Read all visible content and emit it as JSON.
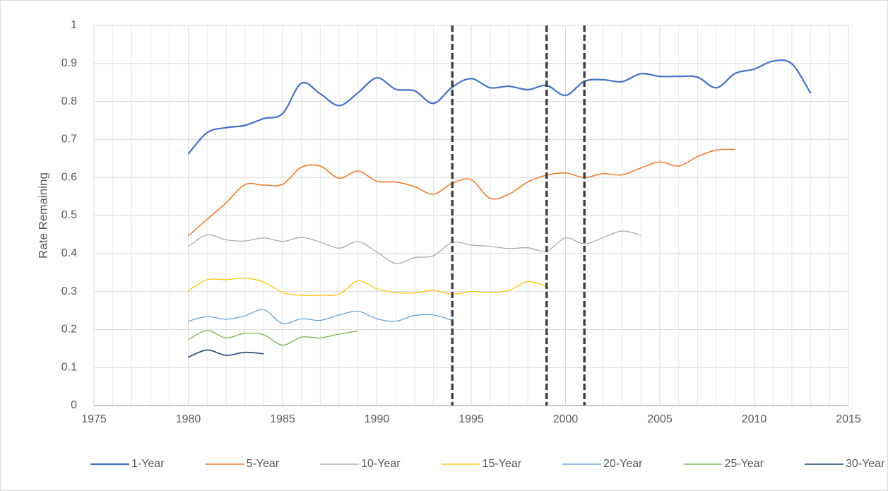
{
  "chart_data": {
    "type": "line",
    "y_label": "Rate Remaining",
    "x": [
      1980,
      1981,
      1982,
      1983,
      1984,
      1985,
      1986,
      1987,
      1988,
      1989,
      1990,
      1991,
      1992,
      1993,
      1994,
      1995,
      1996,
      1997,
      1998,
      1999,
      2000,
      2001,
      2002,
      2003,
      2004,
      2005,
      2006,
      2007,
      2008,
      2009,
      2010,
      2011,
      2012,
      2013
    ],
    "series": [
      {
        "name": "1-Year",
        "color": "#4472c4",
        "width": 2.2,
        "values": [
          0.662,
          0.718,
          0.731,
          0.737,
          0.755,
          0.768,
          0.848,
          0.82,
          0.789,
          0.823,
          0.862,
          0.832,
          0.828,
          0.795,
          0.838,
          0.86,
          0.836,
          0.84,
          0.831,
          0.842,
          0.816,
          0.853,
          0.857,
          0.852,
          0.873,
          0.866,
          0.866,
          0.864,
          0.836,
          0.874,
          0.885,
          0.906,
          0.899,
          0.821
        ]
      },
      {
        "name": "5-Year",
        "color": "#ed7d31",
        "width": 1.6,
        "values": [
          0.446,
          0.49,
          0.533,
          0.581,
          0.58,
          0.582,
          0.627,
          0.63,
          0.598,
          0.617,
          0.59,
          0.588,
          0.576,
          0.556,
          0.585,
          0.594,
          0.545,
          0.556,
          0.588,
          0.606,
          0.612,
          0.6,
          0.61,
          0.607,
          0.625,
          0.641,
          0.63,
          0.655,
          0.672,
          0.674,
          null,
          null,
          null,
          null
        ]
      },
      {
        "name": "10-Year",
        "color": "#a5a5a5",
        "width": 1.2,
        "values": [
          0.418,
          0.449,
          0.436,
          0.433,
          0.441,
          0.432,
          0.442,
          0.43,
          0.414,
          0.431,
          0.404,
          0.374,
          0.389,
          0.394,
          0.429,
          0.422,
          0.419,
          0.413,
          0.415,
          0.406,
          0.441,
          0.425,
          0.442,
          0.459,
          0.448,
          null,
          null,
          null,
          null,
          null,
          null,
          null,
          null,
          null
        ]
      },
      {
        "name": "15-Year",
        "color": "#ffc000",
        "width": 1.2,
        "values": [
          0.302,
          0.331,
          0.331,
          0.335,
          0.325,
          0.297,
          0.29,
          0.29,
          0.293,
          0.328,
          0.307,
          0.297,
          0.296,
          0.303,
          0.293,
          0.3,
          0.297,
          0.303,
          0.326,
          0.313,
          null,
          null,
          null,
          null,
          null,
          null,
          null,
          null,
          null,
          null,
          null,
          null,
          null,
          null
        ]
      },
      {
        "name": "20-Year",
        "color": "#5b9bd5",
        "width": 1.2,
        "values": [
          0.222,
          0.234,
          0.227,
          0.236,
          0.252,
          0.216,
          0.228,
          0.224,
          0.238,
          0.248,
          0.228,
          0.222,
          0.237,
          0.238,
          0.224,
          null,
          null,
          null,
          null,
          null,
          null,
          null,
          null,
          null,
          null,
          null,
          null,
          null,
          null,
          null,
          null,
          null,
          null,
          null
        ]
      },
      {
        "name": "25-Year",
        "color": "#70ad47",
        "width": 1.2,
        "values": [
          0.173,
          0.197,
          0.178,
          0.19,
          0.186,
          0.159,
          0.18,
          0.178,
          0.188,
          0.196,
          null,
          null,
          null,
          null,
          null,
          null,
          null,
          null,
          null,
          null,
          null,
          null,
          null,
          null,
          null,
          null,
          null,
          null,
          null,
          null,
          null,
          null,
          null,
          null
        ]
      },
      {
        "name": "30-Year",
        "color": "#264478",
        "width": 1.6,
        "values": [
          0.127,
          0.146,
          0.132,
          0.14,
          0.136,
          null,
          null,
          null,
          null,
          null,
          null,
          null,
          null,
          null,
          null,
          null,
          null,
          null,
          null,
          null,
          null,
          null,
          null,
          null,
          null,
          null,
          null,
          null,
          null,
          null,
          null,
          null,
          null,
          null
        ]
      }
    ],
    "smooth": true,
    "xlim": [
      1975,
      2015
    ],
    "xticks": [
      1975,
      1980,
      1985,
      1990,
      1995,
      2000,
      2005,
      2010,
      2015
    ],
    "ylim": [
      0,
      1
    ],
    "yticks": [
      0,
      0.1,
      0.2,
      0.3,
      0.4,
      0.5,
      0.6,
      0.7,
      0.8,
      0.9,
      1
    ],
    "grid": true,
    "x_minor_grid": true,
    "vlines": [
      1994,
      1999,
      2001
    ],
    "vline_color": "#404040",
    "legend": "bottom"
  }
}
